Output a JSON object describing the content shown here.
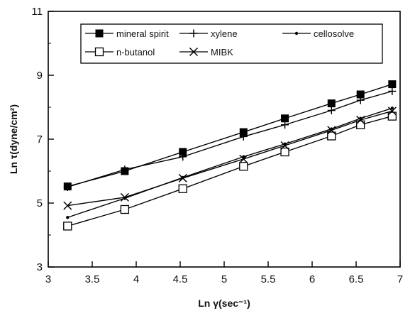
{
  "chart_data": {
    "type": "line",
    "xlabel": "Ln γ(sec⁻¹)",
    "ylabel": "Ln τ(dyne/cm²)",
    "xlim": [
      3,
      7
    ],
    "ylim": [
      3,
      11
    ],
    "xticks": [
      "3",
      "3.5",
      "4",
      "4.5",
      "5",
      "5.5",
      "6",
      "6.5",
      "7"
    ],
    "yticks": [
      "3",
      "5",
      "7",
      "9",
      "11"
    ],
    "grid": false,
    "legend_position": "top",
    "x": [
      3.22,
      3.87,
      4.53,
      5.22,
      5.69,
      6.22,
      6.55,
      6.91
    ],
    "series": [
      {
        "name": "mineral spirit",
        "marker": "filled-square",
        "values": [
          5.52,
          6.0,
          6.6,
          7.22,
          7.65,
          8.12,
          8.4,
          8.72
        ]
      },
      {
        "name": "xylene",
        "marker": "plus",
        "values": [
          5.5,
          6.05,
          6.45,
          7.08,
          7.45,
          7.9,
          8.22,
          8.5
        ]
      },
      {
        "name": "cellosolve",
        "marker": "dot",
        "values": [
          4.55,
          5.15,
          5.8,
          6.45,
          6.85,
          7.32,
          7.65,
          7.97
        ]
      },
      {
        "name": "n-butanol",
        "marker": "open-square",
        "values": [
          4.28,
          4.8,
          5.45,
          6.15,
          6.6,
          7.1,
          7.45,
          7.72
        ]
      },
      {
        "name": "MIBK",
        "marker": "x",
        "values": [
          4.92,
          5.18,
          5.78,
          6.38,
          6.8,
          7.28,
          7.6,
          7.88
        ]
      }
    ]
  }
}
